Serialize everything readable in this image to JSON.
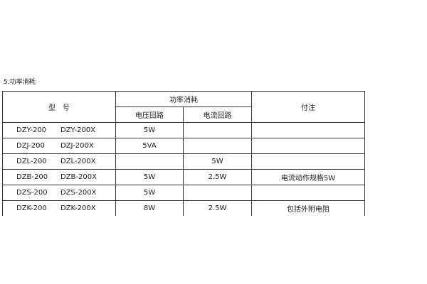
{
  "section_title": "5.功率消耗",
  "headers": {
    "model": "型　号",
    "power": "功率消耗",
    "voltage": "电压回路",
    "current": "电流回路",
    "note": "付注"
  },
  "rows": [
    {
      "model_a": "DZY-200",
      "model_b": "DZY-200X",
      "voltage": "5W",
      "current": "",
      "note": ""
    },
    {
      "model_a": "DZJ-200",
      "model_b": "DZJ-200X",
      "voltage": "5VA",
      "current": "",
      "note": ""
    },
    {
      "model_a": "DZL-200",
      "model_b": "DZL-200X",
      "voltage": "",
      "current": "5W",
      "note": ""
    },
    {
      "model_a": "DZB-200",
      "model_b": "DZB-200X",
      "voltage": "5W",
      "current": "2.5W",
      "note": "电流动作规格5W"
    },
    {
      "model_a": "DZS-200",
      "model_b": "DZS-200X",
      "voltage": "5W",
      "current": "",
      "note": ""
    },
    {
      "model_a": "DZK-200",
      "model_b": "DZK-200X",
      "voltage": "8W",
      "current": "2.5W",
      "note": "包括外附电阻"
    }
  ]
}
